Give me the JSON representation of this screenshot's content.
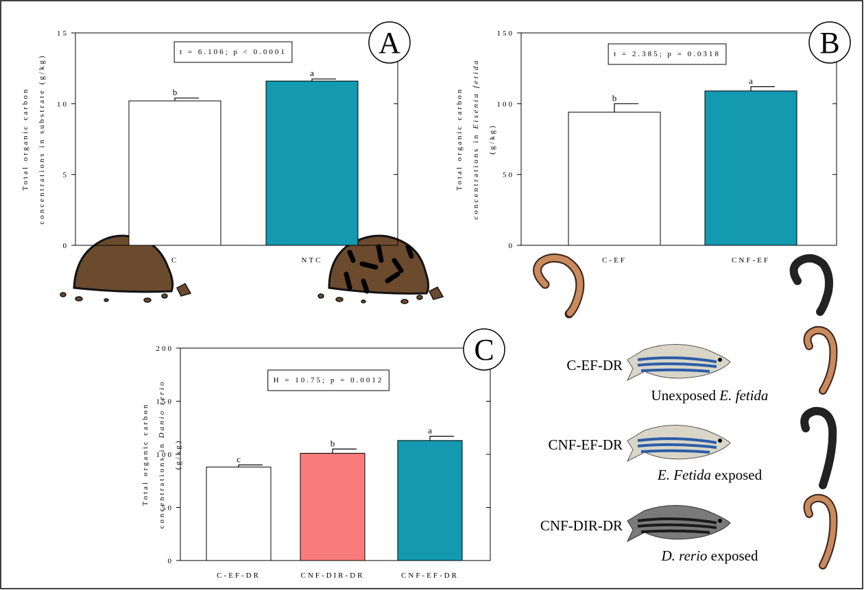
{
  "chart_data": [
    {
      "type": "bar",
      "panel": "A",
      "ylabel": [
        [
          {
            "text": "Total organic carbon",
            "italic": false
          }
        ],
        [
          {
            "text": "concentrations in substrate (g/kg)",
            "italic": false
          }
        ]
      ],
      "annotation": "t = 6.106; p < 0.0001",
      "categories": [
        "C",
        "NTC"
      ],
      "values": [
        10.2,
        11.6
      ],
      "errors": [
        0.2,
        0.15
      ],
      "significance": [
        "b",
        "a"
      ],
      "colors": [
        "#ffffff",
        "#1399b0"
      ],
      "ylim": [
        0,
        15
      ],
      "yticks": [
        0,
        5,
        10,
        15
      ]
    },
    {
      "type": "bar",
      "panel": "B",
      "ylabel": [
        [
          {
            "text": "Total organic carbon",
            "italic": false
          }
        ],
        [
          {
            "text": "concentrations in ",
            "italic": false
          },
          {
            "text": "Eisenia fetida",
            "italic": true
          }
        ],
        [
          {
            "text": "(g/kg)",
            "italic": false
          }
        ]
      ],
      "annotation": "t = 2.385; p = 0.0318",
      "categories": [
        "C-EF",
        "CNF-EF"
      ],
      "values": [
        94,
        109
      ],
      "errors": [
        6,
        3
      ],
      "significance": [
        "b",
        "a"
      ],
      "colors": [
        "#ffffff",
        "#1399b0"
      ],
      "ylim": [
        0,
        150
      ],
      "yticks": [
        0,
        50,
        100,
        150
      ]
    },
    {
      "type": "bar",
      "panel": "C",
      "ylabel": [
        [
          {
            "text": "Total organic carbon",
            "italic": false
          }
        ],
        [
          {
            "text": "concentrations in ",
            "italic": false
          },
          {
            "text": "Danio rerio",
            "italic": true
          }
        ],
        [
          {
            "text": "(g/kg)",
            "italic": false
          }
        ]
      ],
      "annotation": "H = 10.75; p = 0.0012",
      "categories": [
        "C-EF-DR",
        "CNF-DIR-DR",
        "CNF-EF-DR"
      ],
      "values": [
        88,
        101,
        113
      ],
      "errors": [
        2,
        4,
        4
      ],
      "significance": [
        "c",
        "b",
        "a"
      ],
      "colors": [
        "#ffffff",
        "#fa7b7b",
        "#1399b0"
      ],
      "ylim": [
        0,
        200
      ],
      "yticks": [
        0,
        50,
        100,
        150,
        200
      ]
    }
  ],
  "key": [
    {
      "code": "C-EF-DR",
      "caption": [
        {
          "text": "Unexposed ",
          "italic": false
        },
        {
          "text": "E. fetida",
          "italic": true
        }
      ]
    },
    {
      "code": "CNF-EF-DR",
      "caption": [
        {
          "text": "E. Fetida",
          "italic": true
        },
        {
          "text": " exposed",
          "italic": false
        }
      ]
    },
    {
      "code": "CNF-DIR-DR",
      "caption": [
        {
          "text": "D. rerio",
          "italic": true
        },
        {
          "text": " exposed",
          "italic": false
        }
      ]
    }
  ]
}
